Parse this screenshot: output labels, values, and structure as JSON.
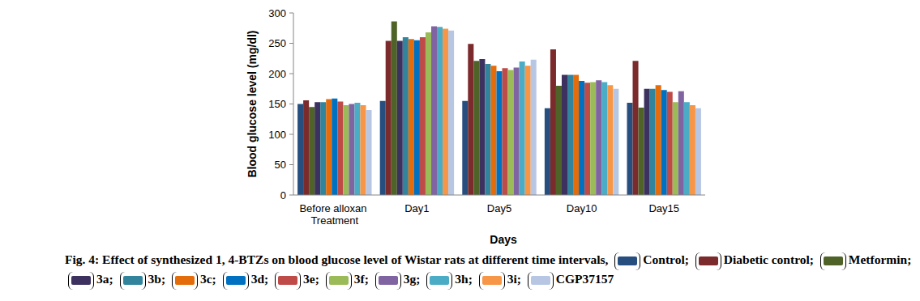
{
  "chart_data": {
    "type": "bar",
    "title": "Fig. 4: Effect of synthesized 1, 4-BTZs on blood glucose level of Wistar rats at different time intervals,",
    "x_label": "Days",
    "y_label": "Blood glucose level (mg/dl)",
    "categories": [
      "Before alloxan Treatment",
      "Day1",
      "Day5",
      "Day10",
      "Day15"
    ],
    "series": [
      {
        "name": "Control",
        "color": "#264f80",
        "values": [
          150,
          155,
          155,
          143,
          152
        ]
      },
      {
        "name": "Diabetic control",
        "color": "#7b2b2b",
        "values": [
          156,
          254,
          249,
          240,
          221
        ]
      },
      {
        "name": "Metformin",
        "color": "#4f6228",
        "values": [
          145,
          286,
          221,
          180,
          144
        ]
      },
      {
        "name": "3a",
        "color": "#3d3160",
        "values": [
          153,
          254,
          224,
          198,
          175
        ]
      },
      {
        "name": "3b",
        "color": "#31849b",
        "values": [
          153,
          260,
          216,
          198,
          175
        ]
      },
      {
        "name": "3c",
        "color": "#e46c0a",
        "values": [
          158,
          257,
          213,
          198,
          181
        ]
      },
      {
        "name": "3d",
        "color": "#0070c0",
        "values": [
          159,
          255,
          204,
          188,
          173
        ]
      },
      {
        "name": "3e",
        "color": "#be4b48",
        "values": [
          154,
          260,
          209,
          185,
          170
        ]
      },
      {
        "name": "3f",
        "color": "#9bbb59",
        "values": [
          148,
          268,
          206,
          186,
          153
        ]
      },
      {
        "name": "3g",
        "color": "#8064a2",
        "values": [
          150,
          278,
          210,
          189,
          171
        ]
      },
      {
        "name": "3h",
        "color": "#4bacc6",
        "values": [
          152,
          277,
          220,
          186,
          153
        ]
      },
      {
        "name": "3i",
        "color": "#f79646",
        "values": [
          148,
          274,
          213,
          181,
          148
        ]
      },
      {
        "name": "CGP37157",
        "color": "#b7c7e3",
        "values": [
          140,
          271,
          223,
          175,
          143
        ]
      }
    ],
    "ylim": [
      0,
      300
    ],
    "yticks": [
      0,
      50,
      100,
      150,
      200,
      250,
      300
    ],
    "grid": false,
    "legend": "bottom"
  }
}
